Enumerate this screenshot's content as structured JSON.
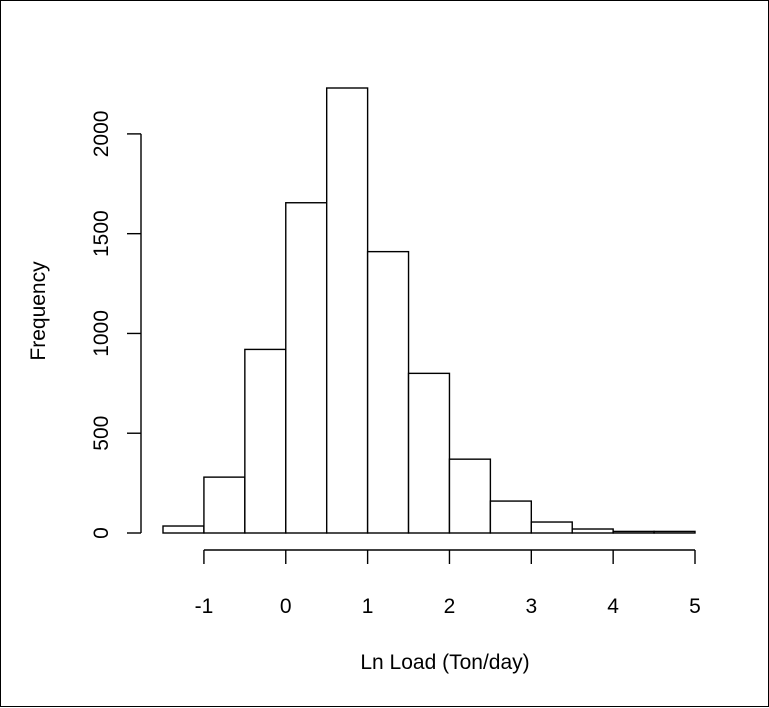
{
  "chart_data": {
    "type": "bar",
    "subtype": "histogram",
    "title": "",
    "xlabel": "Ln Load (Ton/day)",
    "ylabel": "Frequency",
    "bins": [
      {
        "x0": -1.5,
        "x1": -1.0,
        "value": 35
      },
      {
        "x0": -1.0,
        "x1": -0.5,
        "value": 280
      },
      {
        "x0": -0.5,
        "x1": 0.0,
        "value": 920
      },
      {
        "x0": 0.0,
        "x1": 0.5,
        "value": 1655
      },
      {
        "x0": 0.5,
        "x1": 1.0,
        "value": 2230
      },
      {
        "x0": 1.0,
        "x1": 1.5,
        "value": 1410
      },
      {
        "x0": 1.5,
        "x1": 2.0,
        "value": 800
      },
      {
        "x0": 2.0,
        "x1": 2.5,
        "value": 370
      },
      {
        "x0": 2.5,
        "x1": 3.0,
        "value": 160
      },
      {
        "x0": 3.0,
        "x1": 3.5,
        "value": 55
      },
      {
        "x0": 3.5,
        "x1": 4.0,
        "value": 20
      },
      {
        "x0": 4.0,
        "x1": 4.5,
        "value": 8
      },
      {
        "x0": 4.5,
        "x1": 5.0,
        "value": 8
      }
    ],
    "x_ticks": [
      -1,
      0,
      1,
      2,
      3,
      4,
      5
    ],
    "x_tick_labels": [
      "-1",
      "0",
      "1",
      "2",
      "3",
      "4",
      "5"
    ],
    "y_ticks": [
      0,
      500,
      1000,
      1500,
      2000
    ],
    "y_tick_labels": [
      "0",
      "500",
      "1000",
      "1500",
      "2000"
    ],
    "xlim": [
      -1.5,
      5.0
    ],
    "ylim": [
      0,
      2230
    ],
    "grid": false,
    "legend": "none",
    "bar_fill": "#ffffff",
    "bar_stroke": "#000000"
  }
}
